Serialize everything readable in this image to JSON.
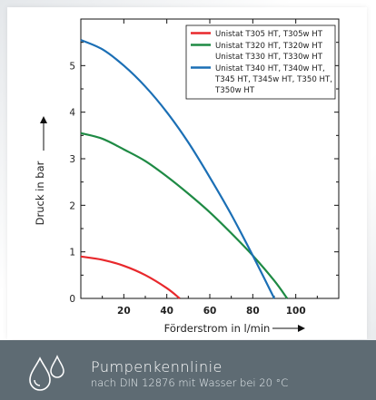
{
  "chart_data": {
    "type": "line",
    "title": "",
    "xlabel": "Förderstrom in l/min",
    "ylabel": "Druck in bar",
    "xlim": [
      0,
      120
    ],
    "ylim": [
      0,
      6
    ],
    "x_ticks": [
      20,
      40,
      60,
      80,
      100
    ],
    "y_ticks": [
      0,
      1,
      2,
      3,
      4,
      5
    ],
    "grid": false,
    "legend_position": "top-right",
    "series": [
      {
        "name": "Unistat T305 HT, T305w HT",
        "color": "#e8282c",
        "x": [
          0,
          10,
          20,
          30,
          40,
          46
        ],
        "y": [
          0.9,
          0.83,
          0.7,
          0.5,
          0.22,
          0.0
        ]
      },
      {
        "name": "Unistat T320 HT, T320w HT\nUnistat T330 HT, T330w HT",
        "color": "#1e8a44",
        "x": [
          0,
          10,
          20,
          30,
          40,
          50,
          60,
          70,
          80,
          90,
          96
        ],
        "y": [
          3.55,
          3.43,
          3.2,
          2.95,
          2.62,
          2.25,
          1.85,
          1.4,
          0.92,
          0.38,
          0.0
        ]
      },
      {
        "name": "Unistat T340 HT, T340w HT,\nT345 HT, T345w HT, T350 HT,\nT350w HT",
        "color": "#1b6fb5",
        "x": [
          0,
          10,
          20,
          30,
          40,
          50,
          60,
          70,
          80,
          90
        ],
        "y": [
          5.55,
          5.35,
          5.0,
          4.55,
          4.0,
          3.35,
          2.6,
          1.8,
          0.92,
          0.0
        ]
      }
    ]
  },
  "caption": {
    "title": "Pumpenkennlinie",
    "subtitle": "nach DIN 12876 mit Wasser bei 20 °C",
    "icon": "water-drops-icon"
  }
}
